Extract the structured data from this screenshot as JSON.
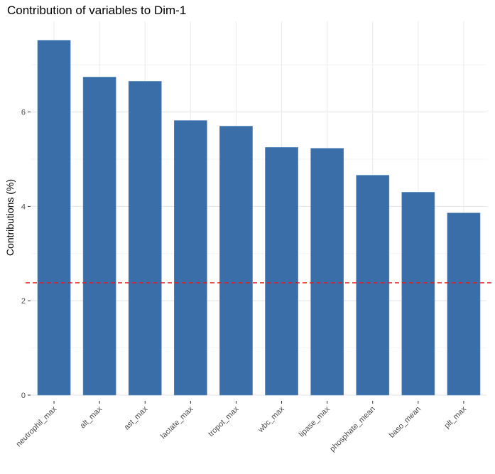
{
  "chart_data": {
    "type": "bar",
    "title": "Contribution of variables to Dim-1",
    "xlabel": "",
    "ylabel": "Contributions (%)",
    "categories": [
      "neutrophil_max",
      "alt_max",
      "ast_max",
      "lactate_max",
      "tropot_max",
      "wbc_max",
      "lipase_max",
      "phosphate_mean",
      "baso_mean",
      "plt_max"
    ],
    "values": [
      7.52,
      6.74,
      6.65,
      5.82,
      5.7,
      5.25,
      5.23,
      4.66,
      4.3,
      3.86
    ],
    "ylim": [
      0,
      7.8
    ],
    "yticks": [
      0,
      2,
      4,
      6
    ],
    "reference_line": {
      "value": 2.38,
      "style": "dashed",
      "color": "#e41a1c"
    },
    "bar_color": "#3a6ea8",
    "grid": true,
    "legend": "none"
  }
}
